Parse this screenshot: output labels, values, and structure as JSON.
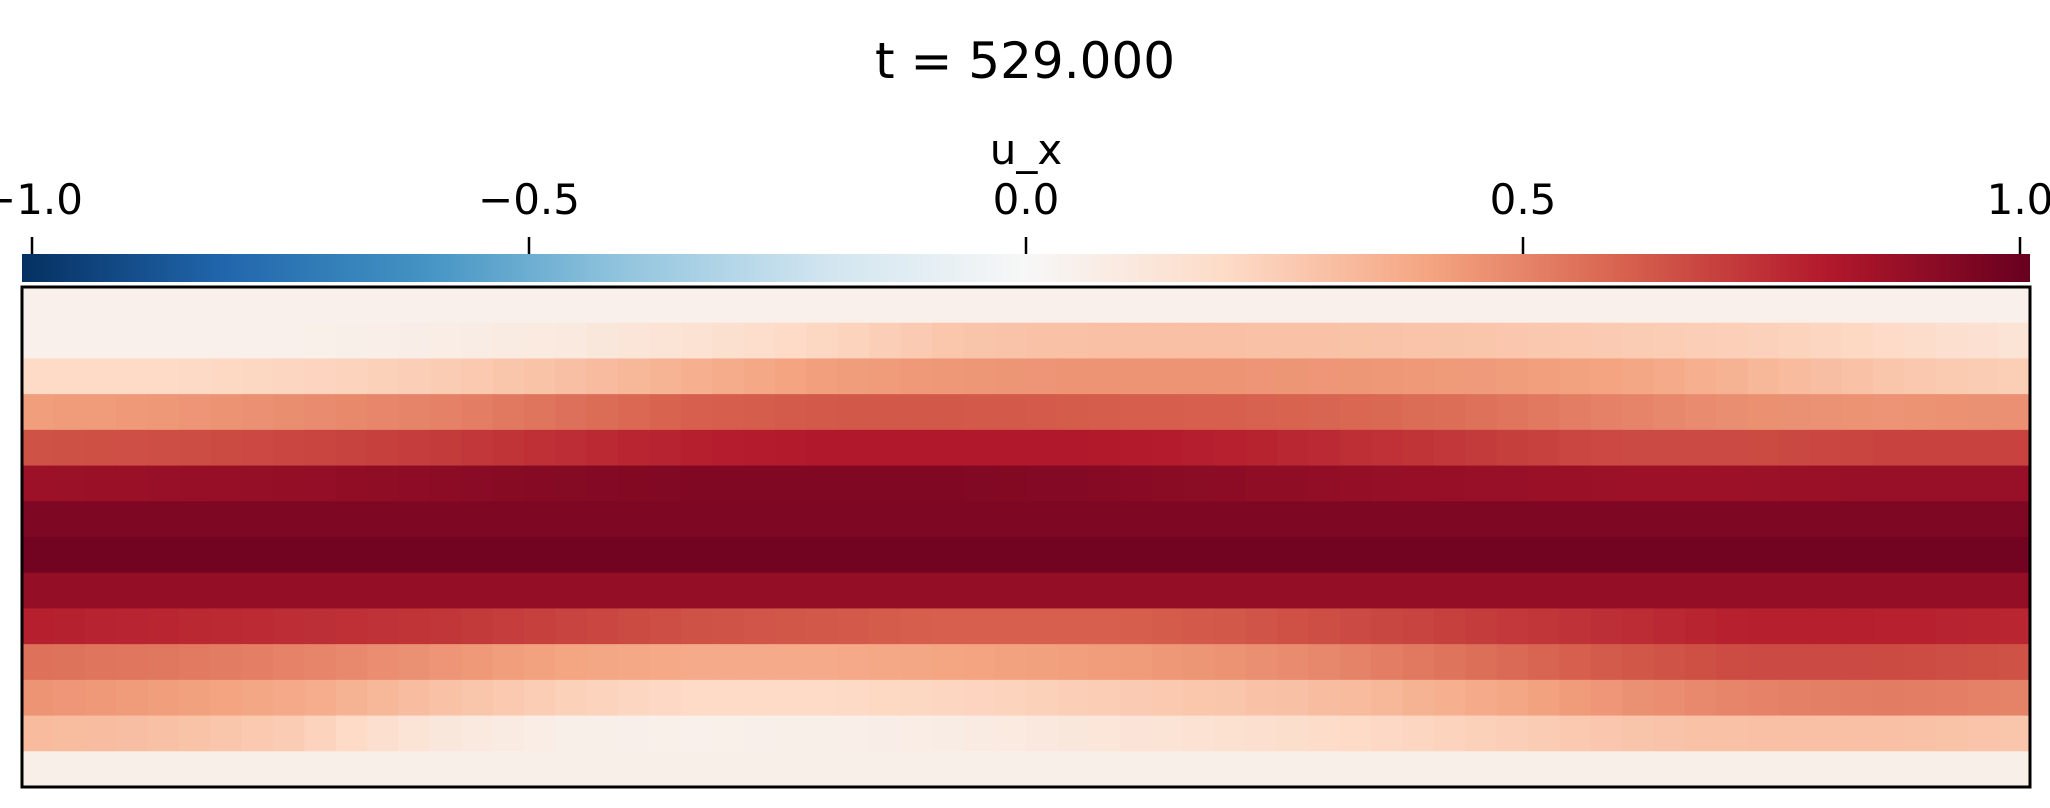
{
  "chart_data": {
    "type": "heatmap",
    "title": "t = 529.000",
    "colorbar": {
      "label": "u_x",
      "range": [
        -1.0,
        1.0
      ],
      "ticks": [
        -1.0,
        -0.5,
        0.0,
        0.5,
        1.0
      ],
      "tick_labels": [
        "−1.0",
        "−0.5",
        "0.0",
        "0.5",
        "1.0"
      ],
      "orientation": "horizontal",
      "placement": "top",
      "colormap": "RdBu_r",
      "color_stops": [
        "#053061",
        "#2166ac",
        "#4393c3",
        "#92c5de",
        "#d1e5f0",
        "#f7f7f7",
        "#fddbc7",
        "#f4a582",
        "#d6604d",
        "#b2182b",
        "#67001f"
      ]
    },
    "grid": {
      "columns": 64,
      "row_profile_top_to_bottom": [
        0.05,
        0.15,
        0.3,
        0.48,
        0.68,
        0.84,
        0.94,
        0.97,
        0.88,
        0.72,
        0.5,
        0.33,
        0.2,
        0.06
      ],
      "note_rows": "each row value is the u_x level of that horizontal band; modulation varies slowly along x"
    },
    "modulation": [
      {
        "row": 1,
        "values": [
          0.05,
          0.05,
          0.05,
          0.07,
          0.1,
          0.15,
          0.22,
          0.28,
          0.3,
          0.3,
          0.29,
          0.28,
          0.26,
          0.24,
          0.2,
          0.14
        ]
      },
      {
        "row": 2,
        "values": [
          0.2,
          0.2,
          0.22,
          0.25,
          0.3,
          0.36,
          0.42,
          0.44,
          0.45,
          0.45,
          0.44,
          0.43,
          0.4,
          0.34,
          0.28,
          0.25
        ]
      },
      {
        "row": 3,
        "values": [
          0.42,
          0.44,
          0.47,
          0.5,
          0.55,
          0.6,
          0.62,
          0.62,
          0.61,
          0.6,
          0.58,
          0.55,
          0.5,
          0.46,
          0.45,
          0.46
        ]
      },
      {
        "row": 4,
        "values": [
          0.64,
          0.65,
          0.67,
          0.7,
          0.74,
          0.78,
          0.8,
          0.8,
          0.8,
          0.78,
          0.74,
          0.7,
          0.66,
          0.66,
          0.68,
          0.68
        ]
      },
      {
        "row": 5,
        "values": [
          0.86,
          0.87,
          0.88,
          0.9,
          0.92,
          0.93,
          0.93,
          0.93,
          0.92,
          0.9,
          0.88,
          0.87,
          0.86,
          0.86,
          0.87,
          0.87
        ]
      },
      {
        "row": 9,
        "values": [
          0.78,
          0.76,
          0.74,
          0.72,
          0.68,
          0.64,
          0.62,
          0.6,
          0.6,
          0.62,
          0.66,
          0.7,
          0.74,
          0.78,
          0.78,
          0.76
        ]
      },
      {
        "row": 10,
        "values": [
          0.55,
          0.53,
          0.5,
          0.45,
          0.4,
          0.38,
          0.38,
          0.4,
          0.42,
          0.45,
          0.5,
          0.56,
          0.62,
          0.66,
          0.66,
          0.64
        ]
      },
      {
        "row": 11,
        "values": [
          0.45,
          0.42,
          0.38,
          0.3,
          0.24,
          0.2,
          0.2,
          0.22,
          0.25,
          0.28,
          0.32,
          0.38,
          0.45,
          0.5,
          0.52,
          0.5
        ]
      },
      {
        "row": 12,
        "values": [
          0.32,
          0.3,
          0.25,
          0.12,
          0.06,
          0.05,
          0.06,
          0.08,
          0.12,
          0.16,
          0.2,
          0.24,
          0.28,
          0.3,
          0.3,
          0.28
        ]
      }
    ]
  }
}
